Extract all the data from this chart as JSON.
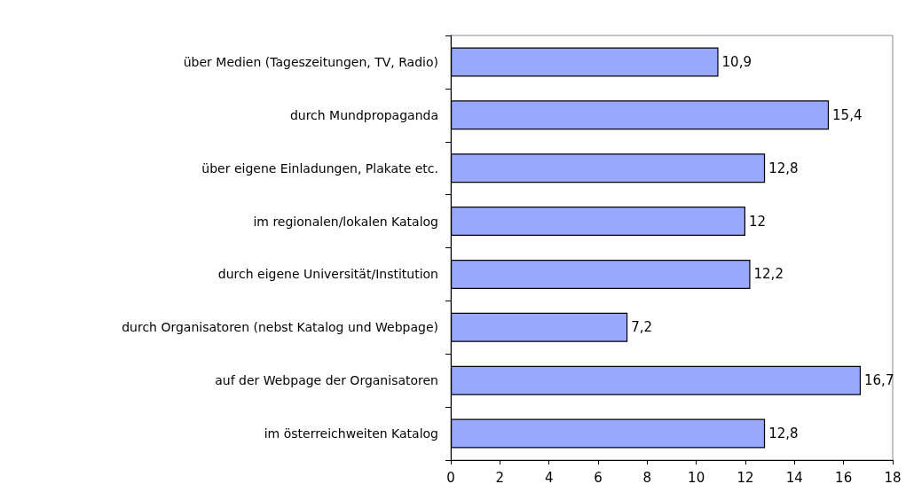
{
  "chart_data": {
    "type": "bar",
    "orientation": "horizontal",
    "categories": [
      "über Medien (Tageszeitungen, TV, Radio)",
      "durch Mundpropaganda",
      "über eigene Einladungen, Plakate etc.",
      "im regionalen/lokalen Katalog",
      "durch eigene Universität/Institution",
      "durch Organisatoren (nebst Katalog und Webpage)",
      "auf der Webpage der Organisatoren",
      "im österreichweiten Katalog"
    ],
    "values": [
      10.9,
      15.4,
      12.8,
      12,
      12.2,
      7.2,
      16.7,
      12.8
    ],
    "value_labels": [
      "10,9",
      "15,4",
      "12,8",
      "12",
      "12,2",
      "7,2",
      "16,7",
      "12,8"
    ],
    "color": "#99a8ff",
    "xlim": [
      0,
      18
    ],
    "xticks": [
      0,
      2,
      4,
      6,
      8,
      10,
      12,
      14,
      16,
      18
    ]
  }
}
